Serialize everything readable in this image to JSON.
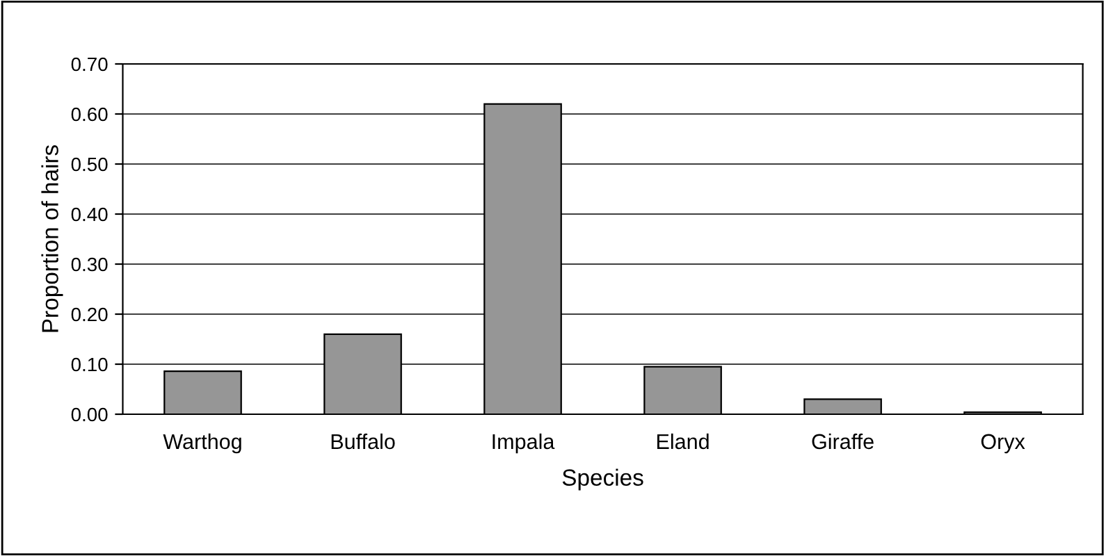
{
  "chart_data": {
    "type": "bar",
    "xlabel": "Species",
    "ylabel": "Proportion of hairs",
    "categories": [
      "Warthog",
      "Buffalo",
      "Impala",
      "Eland",
      "Giraffe",
      "Oryx"
    ],
    "values": [
      0.086,
      0.16,
      0.62,
      0.095,
      0.03,
      0.004
    ],
    "color": "#969696",
    "ylim": [
      0,
      0.7
    ],
    "yticks": [
      {
        "value": 0,
        "label": "0.00"
      },
      {
        "value": 0.1,
        "label": "0.10"
      },
      {
        "value": 0.2,
        "label": "0.20"
      },
      {
        "value": 0.3,
        "label": "0.30"
      },
      {
        "value": 0.4,
        "label": "0.40"
      },
      {
        "value": 0.5,
        "label": "0.50"
      },
      {
        "value": 0.6,
        "label": "0.60"
      },
      {
        "value": 0.7,
        "label": "0.70"
      }
    ],
    "grid": "y",
    "legend": false
  }
}
